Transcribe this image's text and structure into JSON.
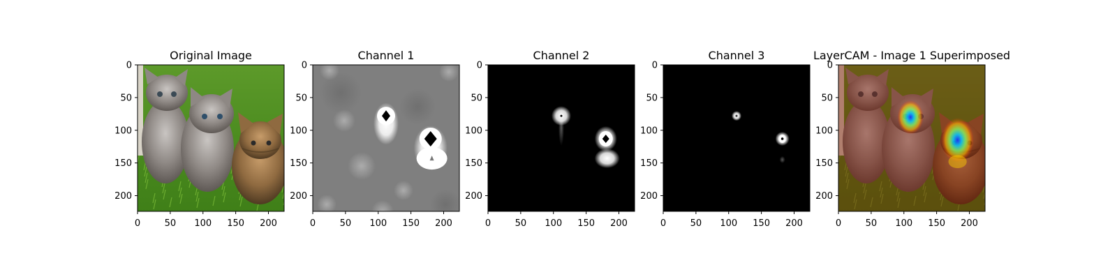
{
  "chart_data": [
    {
      "type": "heatmap",
      "panel": "original",
      "title": "Original Image",
      "xlim": [
        0,
        224
      ],
      "ylim": [
        224,
        0
      ],
      "xticks": [
        0,
        50,
        100,
        150,
        200
      ],
      "yticks": [
        0,
        50,
        100,
        150,
        200
      ]
    },
    {
      "type": "heatmap",
      "panel": "channel1",
      "title": "Channel 1",
      "xlim": [
        0,
        224
      ],
      "ylim": [
        224,
        0
      ],
      "xticks": [
        0,
        50,
        100,
        150,
        200
      ],
      "yticks": [
        0,
        50,
        100,
        150,
        200
      ],
      "colormap": "gray",
      "hotspots": [
        {
          "x": 112,
          "y": 78
        },
        {
          "x": 180,
          "y": 113
        },
        {
          "x": 182,
          "y": 143
        }
      ]
    },
    {
      "type": "heatmap",
      "panel": "channel2",
      "title": "Channel 2",
      "xlim": [
        0,
        224
      ],
      "ylim": [
        224,
        0
      ],
      "xticks": [
        0,
        50,
        100,
        150,
        200
      ],
      "yticks": [
        0,
        50,
        100,
        150,
        200
      ],
      "colormap": "gray",
      "hotspots": [
        {
          "x": 112,
          "y": 78
        },
        {
          "x": 180,
          "y": 113
        },
        {
          "x": 182,
          "y": 143
        }
      ]
    },
    {
      "type": "heatmap",
      "panel": "channel3",
      "title": "Channel 3",
      "xlim": [
        0,
        224
      ],
      "ylim": [
        224,
        0
      ],
      "xticks": [
        0,
        50,
        100,
        150,
        200
      ],
      "yticks": [
        0,
        50,
        100,
        150,
        200
      ],
      "colormap": "gray",
      "hotspots": [
        {
          "x": 112,
          "y": 78
        },
        {
          "x": 182,
          "y": 113
        },
        {
          "x": 182,
          "y": 145
        }
      ]
    },
    {
      "type": "heatmap",
      "panel": "superimposed",
      "title": "LayerCAM - Image 1 Superimposed",
      "xlim": [
        0,
        224
      ],
      "ylim": [
        224,
        0
      ],
      "xticks": [
        0,
        50,
        100,
        150,
        200
      ],
      "yticks": [
        0,
        50,
        100,
        150,
        200
      ],
      "colormap": "jet",
      "hotspots": [
        {
          "x": 110,
          "y": 80
        },
        {
          "x": 182,
          "y": 115
        }
      ]
    }
  ]
}
